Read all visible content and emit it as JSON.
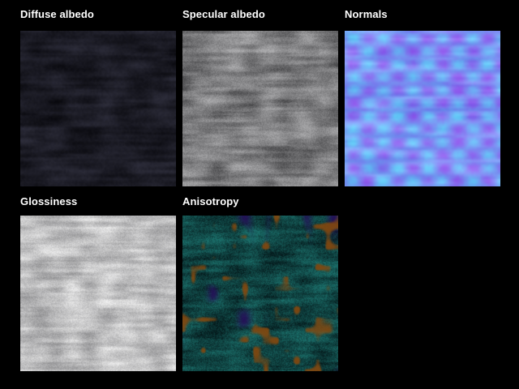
{
  "viewer": {
    "background": "#000000",
    "label_color": "#ffffff"
  },
  "panels": [
    {
      "id": "diffuse-albedo",
      "label": "Diffuse albedo",
      "tex": {
        "kind": "gray",
        "seed": 11,
        "res": 96,
        "grain": 0.18,
        "lo": [
          9,
          9,
          14
        ],
        "hi": [
          46,
          46,
          60
        ],
        "avg_hex": "#1b1b24"
      }
    },
    {
      "id": "specular-albedo",
      "label": "Specular albedo",
      "tex": {
        "kind": "gray",
        "seed": 23,
        "res": 192,
        "grain": 0.3,
        "lo": [
          74,
          74,
          76
        ],
        "hi": [
          172,
          172,
          174
        ],
        "avg_hex": "#7b7b7d"
      }
    },
    {
      "id": "normals",
      "label": "Normals",
      "tex": {
        "kind": "normal",
        "seed": 37,
        "res": 64,
        "purple": [
          143,
          92,
          237
        ],
        "cyan": [
          103,
          203,
          248
        ],
        "avg_hex": "#8280ee"
      }
    },
    {
      "id": "glossiness",
      "label": "Glossiness",
      "tex": {
        "kind": "gray",
        "seed": 51,
        "res": 192,
        "grain": 0.3,
        "lo": [
          144,
          144,
          146
        ],
        "hi": [
          238,
          238,
          238
        ],
        "avg_hex": "#c6c6c7"
      }
    },
    {
      "id": "anisotropy",
      "label": "Anisotropy",
      "tex": {
        "kind": "aniso",
        "seed": 67,
        "res": 192,
        "lo": [
          4,
          26,
          28
        ],
        "hi": [
          27,
          112,
          107
        ],
        "purple": [
          36,
          14,
          88
        ],
        "orange": [
          132,
          72,
          14
        ],
        "avg_hex": "#0c3a3c"
      }
    }
  ]
}
